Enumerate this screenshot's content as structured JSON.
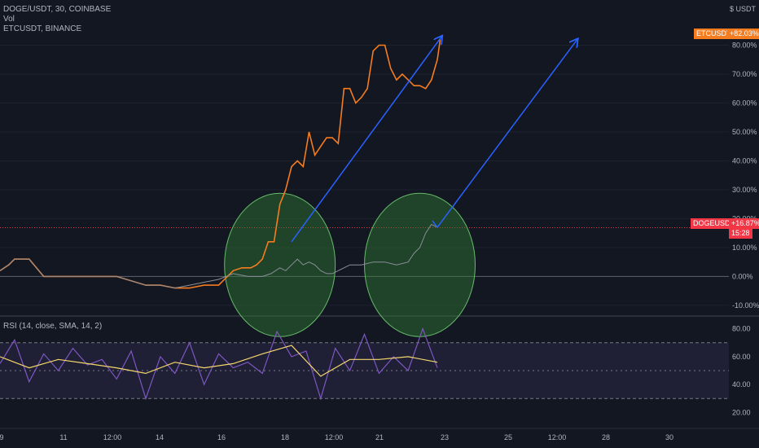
{
  "legend": {
    "main": "DOGE/USDT, 30, COINBASE",
    "vol": "Vol",
    "compare": "ETCUSDT, BINANCE",
    "rsi": "RSI (14, close, SMA, 14, 2)"
  },
  "price_axis_unit": "$ USDT",
  "badges": {
    "etc_symbol": "ETCUSDT",
    "etc_value": "+82.03%",
    "doge_symbol": "DOGEUSDT",
    "doge_value": "+16.87%",
    "doge_timer": "15:28"
  },
  "colors": {
    "background": "#131722",
    "doge_line": "#8a8f99",
    "etc_line": "#f57c1f",
    "arrow": "#2962ff",
    "circle_fill": "#2e7d32",
    "circle_stroke": "#66bb6a",
    "rsi_line": "#7e57c2",
    "rsi_ma": "#f5d76e",
    "doge_badge": "#f23645",
    "etc_badge": "#f57c1f"
  },
  "chart_data": [
    {
      "type": "line",
      "name": "price-comparison",
      "y_unit": "%",
      "y_ticks": [
        "80.00%",
        "70.00%",
        "60.00%",
        "50.00%",
        "40.00%",
        "30.00%",
        "20.00%",
        "10.00%",
        "0.00%",
        "-10.00%"
      ],
      "ylim": [
        -12,
        90
      ],
      "x_ticks": [
        "9",
        "11",
        "12:00",
        "14",
        "16",
        "18",
        "12:00",
        "21",
        "23",
        "25",
        "12:00",
        "28",
        "30"
      ],
      "series": [
        {
          "key": "etc",
          "x": [
            0,
            0.3,
            0.5,
            1,
            1.5,
            2,
            3,
            4,
            5,
            5.5,
            6,
            6.5,
            7,
            7.5,
            8,
            8.3,
            8.6,
            8.8,
            9.0,
            9.2,
            9.4,
            9.6,
            9.8,
            10.0,
            10.2,
            10.4,
            10.6,
            10.8,
            11.0,
            11.2,
            11.4,
            11.6,
            11.8,
            12.0,
            12.2,
            12.4,
            12.6,
            12.8,
            13.0,
            13.2,
            13.4,
            13.6,
            13.8,
            14.0,
            14.2,
            14.4,
            14.6,
            14.8,
            15.0,
            15.1
          ],
          "y": [
            2,
            4,
            6,
            6,
            0,
            0,
            0,
            0,
            -3,
            -3,
            -4,
            -4,
            -3,
            -3,
            2,
            3,
            3,
            4,
            6,
            12,
            12,
            25,
            30,
            38,
            40,
            38,
            50,
            42,
            45,
            48,
            48,
            46,
            65,
            65,
            60,
            62,
            65,
            78,
            80,
            80,
            72,
            68,
            70,
            68,
            66,
            66,
            65,
            68,
            75,
            82
          ]
        },
        {
          "key": "doge",
          "x": [
            0,
            0.3,
            0.5,
            1,
            1.5,
            2,
            3,
            4,
            5,
            5.5,
            6,
            6.5,
            7,
            7.5,
            8,
            8.5,
            9.0,
            9.3,
            9.6,
            9.8,
            10.0,
            10.2,
            10.4,
            10.6,
            10.8,
            11.0,
            11.2,
            11.4,
            11.6,
            11.8,
            12.0,
            12.4,
            12.8,
            13.2,
            13.6,
            14.0,
            14.2,
            14.4,
            14.6,
            14.8,
            15.0
          ],
          "y": [
            2,
            4,
            6,
            6,
            0,
            0,
            0,
            0,
            -3,
            -3,
            -4,
            -3,
            -2,
            -1,
            1,
            0,
            0,
            1,
            3,
            2,
            4,
            6,
            4,
            5,
            4,
            2,
            1,
            1,
            2,
            3,
            4,
            4,
            5,
            5,
            4,
            5,
            8,
            10,
            15,
            18,
            17
          ]
        }
      ]
    },
    {
      "type": "line",
      "name": "rsi",
      "y_ticks": [
        "80.00",
        "60.00",
        "40.00",
        "20.00"
      ],
      "ylim": [
        15,
        85
      ],
      "bands": [
        30,
        50,
        70
      ],
      "series": [
        {
          "key": "rsi",
          "x": [
            0,
            0.5,
            1,
            1.5,
            2,
            2.5,
            3,
            3.5,
            4,
            4.5,
            5,
            5.5,
            6,
            6.5,
            7,
            7.5,
            8,
            8.5,
            9,
            9.5,
            10,
            10.5,
            11,
            11.5,
            12,
            12.5,
            13,
            13.5,
            14,
            14.5,
            15
          ],
          "y": [
            55,
            72,
            42,
            62,
            50,
            66,
            54,
            58,
            44,
            64,
            30,
            60,
            48,
            70,
            40,
            62,
            52,
            56,
            48,
            78,
            60,
            64,
            30,
            66,
            50,
            76,
            48,
            60,
            50,
            80,
            52
          ]
        },
        {
          "key": "rsi_ma",
          "x": [
            0,
            1,
            2,
            3,
            4,
            5,
            6,
            7,
            8,
            9,
            10,
            11,
            12,
            13,
            14,
            15
          ],
          "y": [
            60,
            52,
            58,
            55,
            52,
            48,
            56,
            52,
            55,
            62,
            68,
            46,
            58,
            58,
            60,
            56
          ]
        }
      ]
    }
  ]
}
